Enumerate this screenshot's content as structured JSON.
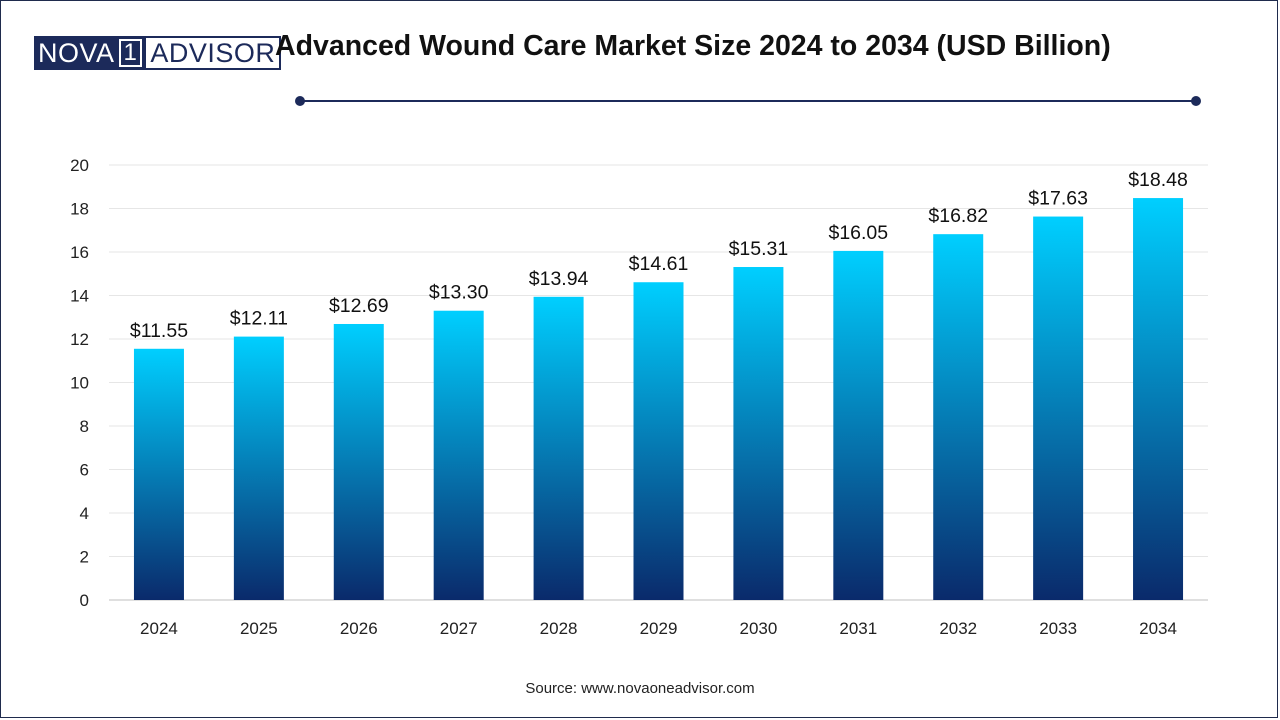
{
  "logo": {
    "part1": "NOVA",
    "part2": "1",
    "part3": "ADVISOR"
  },
  "header": {
    "title": "Advanced Wound Care Market Size 2024 to 2034 (USD Billion)"
  },
  "source": "Source: www.novaoneadvisor.com",
  "colors": {
    "bar_top": "#00cfff",
    "bar_bottom": "#0a2a6b",
    "accent": "#1c2a5a"
  },
  "chart_data": {
    "type": "bar",
    "title": "Advanced Wound Care Market Size 2024 to 2034 (USD Billion)",
    "xlabel": "",
    "ylabel": "",
    "categories": [
      "2024",
      "2025",
      "2026",
      "2027",
      "2028",
      "2029",
      "2030",
      "2031",
      "2032",
      "2033",
      "2034"
    ],
    "values": [
      11.55,
      12.11,
      12.69,
      13.3,
      13.94,
      14.61,
      15.31,
      16.05,
      16.82,
      17.63,
      18.48
    ],
    "value_labels": [
      "$11.55",
      "$12.11",
      "$12.69",
      "$13.30",
      "$13.94",
      "$14.61",
      "$15.31",
      "$16.05",
      "$16.82",
      "$17.63",
      "$18.48"
    ],
    "ylim": [
      0,
      20
    ],
    "yticks": [
      0,
      2,
      4,
      6,
      8,
      10,
      12,
      14,
      16,
      18,
      20
    ],
    "grid": true,
    "legend": "none"
  }
}
